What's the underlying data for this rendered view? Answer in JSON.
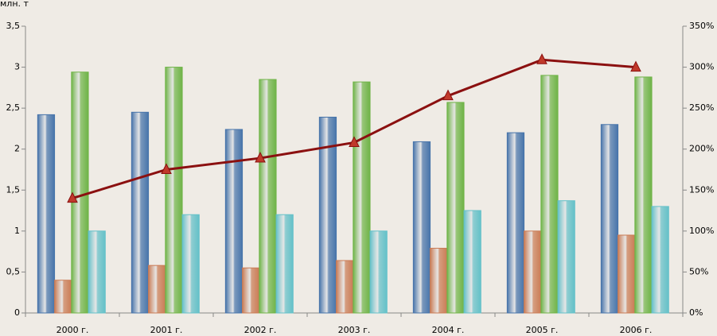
{
  "chart_data": {
    "type": "bar",
    "y_label": "млн. т",
    "categories": [
      "2000 г.",
      "2001 г.",
      "2002 г.",
      "2003 г.",
      "2004 г.",
      "2005 г.",
      "2006 г."
    ],
    "series": [
      {
        "color": "#4f81bd",
        "values": [
          2.42,
          2.45,
          2.24,
          2.39,
          2.09,
          2.2,
          2.3
        ]
      },
      {
        "color": "#e0895e",
        "values": [
          0.4,
          0.58,
          0.55,
          0.64,
          0.79,
          1.0,
          0.95
        ]
      },
      {
        "color": "#7cc850",
        "values": [
          2.94,
          3.0,
          2.85,
          2.82,
          2.57,
          2.9,
          2.88
        ]
      },
      {
        "color": "#6fd6df",
        "values": [
          1.0,
          1.2,
          1.2,
          1.0,
          1.25,
          1.37,
          1.3
        ]
      },
      {
        "type": "line",
        "axis": "y2",
        "color": "#8b1010",
        "marker_color": "#c0392b",
        "values": [
          140,
          175,
          189,
          208,
          265,
          309,
          300
        ]
      }
    ],
    "ylim": [
      0,
      3.5
    ],
    "yticks": [
      0,
      {
        "value": 0.5,
        "label": "0,5"
      },
      1,
      {
        "value": 1.5,
        "label": "1,5"
      },
      2,
      {
        "value": 2.5,
        "label": "2,5"
      },
      3,
      {
        "value": 3.5,
        "label": "3,5"
      }
    ],
    "y2lim": [
      0,
      350
    ],
    "y2ticks": [
      {
        "value": 0,
        "label": "0%"
      },
      {
        "value": 50,
        "label": "50%"
      },
      {
        "value": 100,
        "label": "100%"
      },
      {
        "value": 150,
        "label": "150%"
      },
      {
        "value": 200,
        "label": "200%"
      },
      {
        "value": 250,
        "label": "250%"
      },
      {
        "value": 300,
        "label": "300%"
      },
      {
        "value": 350,
        "label": "350%"
      }
    ],
    "grid": false
  }
}
